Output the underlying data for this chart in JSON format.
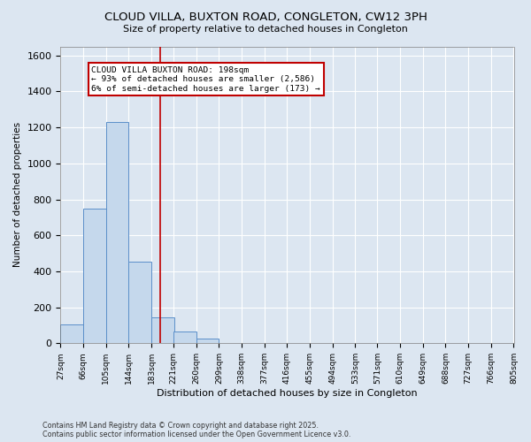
{
  "title_line1": "CLOUD VILLA, BUXTON ROAD, CONGLETON, CW12 3PH",
  "title_line2": "Size of property relative to detached houses in Congleton",
  "xlabel": "Distribution of detached houses by size in Congleton",
  "ylabel": "Number of detached properties",
  "footnote_line1": "Contains HM Land Registry data © Crown copyright and database right 2025.",
  "footnote_line2": "Contains public sector information licensed under the Open Government Licence v3.0.",
  "annotation_line1": "CLOUD VILLA BUXTON ROAD: 198sqm",
  "annotation_line2": "← 93% of detached houses are smaller (2,586)",
  "annotation_line3": "6% of semi-detached houses are larger (173) →",
  "bar_color": "#c5d8ec",
  "bar_edge_color": "#5b8fc9",
  "red_line_color": "#c00000",
  "annotation_box_color": "#ffffff",
  "annotation_box_edge_color": "#c00000",
  "background_color": "#dce6f1",
  "plot_background_color": "#dce6f1",
  "bins": [
    27,
    66,
    105,
    144,
    183,
    221,
    260,
    299,
    338,
    377,
    416,
    455,
    494,
    533,
    571,
    610,
    649,
    688,
    727,
    766,
    805
  ],
  "bar_heights": [
    105,
    750,
    1232,
    455,
    144,
    66,
    27,
    0,
    0,
    0,
    0,
    0,
    0,
    0,
    0,
    0,
    0,
    0,
    0,
    0
  ],
  "red_line_x": 198,
  "ylim": [
    0,
    1650
  ],
  "yticks": [
    0,
    200,
    400,
    600,
    800,
    1000,
    1200,
    1400,
    1600
  ]
}
